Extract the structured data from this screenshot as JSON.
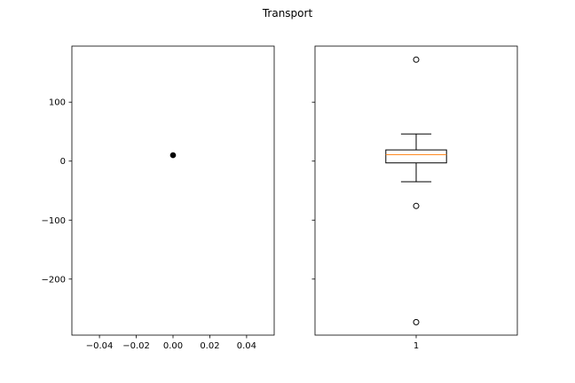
{
  "figure": {
    "title": "Transport"
  },
  "chart_data": [
    {
      "type": "scatter",
      "panel": "left",
      "title": "",
      "xlabel": "",
      "ylabel": "",
      "xlim": [
        -0.055,
        0.055
      ],
      "ylim": [
        -295,
        195
      ],
      "xticks": [
        -0.04,
        -0.02,
        0.0,
        0.02,
        0.04
      ],
      "xtick_labels": [
        "−0.04",
        "−0.02",
        "0.00",
        "0.02",
        "0.04"
      ],
      "yticks": [
        100,
        0,
        -100,
        -200
      ],
      "ytick_labels": [
        "100",
        "0",
        "−100",
        "−200"
      ],
      "points": [
        {
          "x": 0.0,
          "y": 10
        }
      ],
      "marker_color": "#000000",
      "grid": false
    },
    {
      "type": "box",
      "panel": "right",
      "title": "",
      "xlabel": "",
      "ylabel": "",
      "sharey": true,
      "xlim": [
        0.5,
        1.5
      ],
      "ylim": [
        -295,
        195
      ],
      "categories": [
        "1"
      ],
      "xticks": [
        1
      ],
      "xtick_labels": [
        "1"
      ],
      "boxes": [
        {
          "position": 1,
          "whisker_low": -35,
          "q1": -3,
          "median": 11,
          "q3": 19,
          "whisker_high": 46,
          "fliers": [
            172,
            -76,
            -273
          ]
        }
      ],
      "median_color": "#ff7f0e",
      "box_color": "#000000",
      "grid": false
    }
  ]
}
